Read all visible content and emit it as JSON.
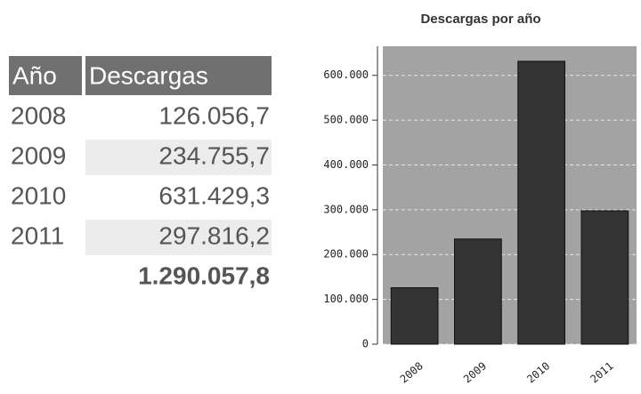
{
  "table": {
    "header": [
      "Año",
      "Descargas"
    ],
    "rows": [
      [
        "2008",
        "126.056,7"
      ],
      [
        "2009",
        "234.755,7"
      ],
      [
        "2010",
        "631.429,3"
      ],
      [
        "2011",
        "297.816,2"
      ]
    ],
    "total": "1.290.057,8"
  },
  "chart_data": {
    "type": "bar",
    "title": "Descargas por año",
    "categories": [
      "2008",
      "2009",
      "2010",
      "2011"
    ],
    "values": [
      126056.7,
      234755.7,
      631429.3,
      297816.2
    ],
    "color": "#333333",
    "ylim": [
      0,
      665000
    ],
    "yticks": [
      0,
      {
        "value": 100000,
        "label": "100.000"
      },
      {
        "value": 200000,
        "label": "200.000"
      },
      {
        "value": 300000,
        "label": "300.000"
      },
      {
        "value": 400000,
        "label": "400.000"
      },
      {
        "value": 500000,
        "label": "500.000"
      },
      {
        "value": 600000,
        "label": "600.000"
      }
    ],
    "grid": true
  }
}
